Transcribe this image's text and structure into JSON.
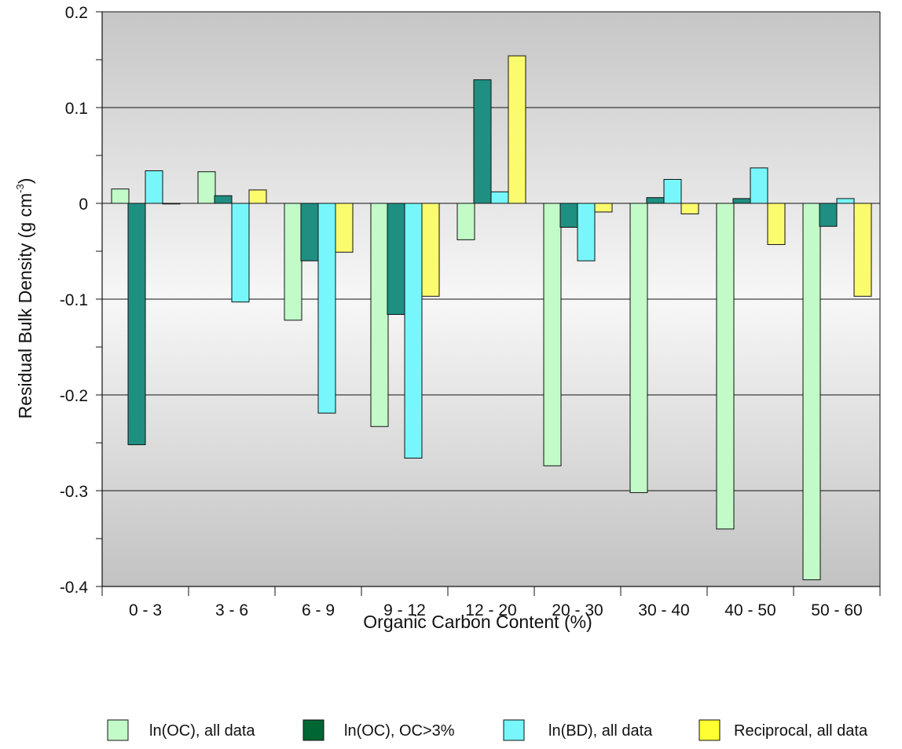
{
  "chart_data": {
    "type": "bar",
    "xlabel": "Organic Carbon Content (%)",
    "ylabel": "Residual Bulk Density (g cm",
    "ylabel_sup": "-3",
    "ylabel_end": ")",
    "ylim": [
      -0.4,
      0.2
    ],
    "yticks": [
      "0.2",
      "0.1",
      "0",
      "-0.1",
      "-0.2",
      "-0.3",
      "-0.4"
    ],
    "grid": true,
    "legend_position": "bottom",
    "categories": [
      "0 - 3",
      "3 - 6",
      "6 - 9",
      "9 - 12",
      "12 - 20",
      "20 - 30",
      "30 - 40",
      "40 - 50",
      "50 - 60"
    ],
    "series": [
      {
        "name": "ln(OC), all data",
        "color": "#c2fbc8",
        "values": [
          0.015,
          0.033,
          -0.122,
          -0.233,
          -0.038,
          -0.274,
          -0.302,
          -0.34,
          -0.393
        ]
      },
      {
        "name": "ln(OC), OC>3%",
        "color": "#1f8f82",
        "values": [
          -0.252,
          0.008,
          -0.06,
          -0.116,
          0.129,
          -0.025,
          0.006,
          0.005,
          -0.024
        ]
      },
      {
        "name": "ln(BD), all data",
        "color": "#77f7fb",
        "values": [
          0.034,
          -0.103,
          -0.219,
          -0.266,
          0.012,
          -0.06,
          0.025,
          0.037,
          0.005
        ]
      },
      {
        "name": "Reciprocal, all data",
        "color": "#fbfb6e",
        "values": [
          0.0,
          0.014,
          -0.051,
          -0.097,
          0.154,
          -0.009,
          -0.011,
          -0.043,
          -0.097
        ]
      }
    ],
    "legend_swatch_colors": [
      "#c2fbc8",
      "#006633",
      "#77f7fb",
      "#ffff33"
    ]
  }
}
